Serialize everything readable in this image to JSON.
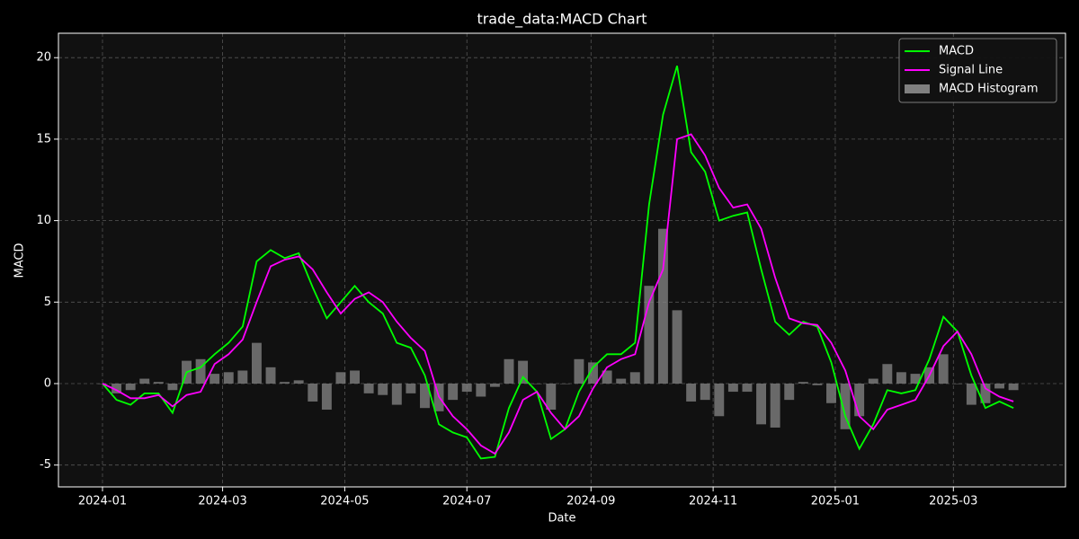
{
  "chart_data": {
    "type": "line",
    "title": "trade_data:MACD Chart",
    "x_label": "Date",
    "y_label": "MACD",
    "x": [
      "2024-01-01",
      "2024-01-08",
      "2024-01-15",
      "2024-01-22",
      "2024-01-29",
      "2024-02-05",
      "2024-02-12",
      "2024-02-19",
      "2024-02-26",
      "2024-03-04",
      "2024-03-11",
      "2024-03-18",
      "2024-03-25",
      "2024-04-01",
      "2024-04-08",
      "2024-04-15",
      "2024-04-22",
      "2024-04-29",
      "2024-05-06",
      "2024-05-13",
      "2024-05-20",
      "2024-05-27",
      "2024-06-03",
      "2024-06-10",
      "2024-06-17",
      "2024-06-24",
      "2024-07-01",
      "2024-07-08",
      "2024-07-15",
      "2024-07-22",
      "2024-07-29",
      "2024-08-05",
      "2024-08-12",
      "2024-08-19",
      "2024-08-26",
      "2024-09-02",
      "2024-09-09",
      "2024-09-16",
      "2024-09-23",
      "2024-09-30",
      "2024-10-07",
      "2024-10-14",
      "2024-10-21",
      "2024-10-28",
      "2024-11-04",
      "2024-11-11",
      "2024-11-18",
      "2024-11-25",
      "2024-12-02",
      "2024-12-09",
      "2024-12-16",
      "2024-12-23",
      "2024-12-30",
      "2025-01-06",
      "2025-01-13",
      "2025-01-20",
      "2025-01-27",
      "2025-02-03",
      "2025-02-10",
      "2025-02-17",
      "2025-02-24",
      "2025-03-03",
      "2025-03-10",
      "2025-03-17",
      "2025-03-24",
      "2025-03-31"
    ],
    "series": [
      {
        "name": "MACD Histogram",
        "type": "bar",
        "color": "#808080",
        "values": [
          0,
          -0.6,
          -0.4,
          0.3,
          0.1,
          -0.4,
          1.4,
          1.5,
          0.6,
          0.7,
          0.8,
          2.5,
          1.0,
          0.1,
          0.2,
          -1.1,
          -1.6,
          0.7,
          0.8,
          -0.6,
          -0.7,
          -1.3,
          -0.6,
          -1.5,
          -1.7,
          -1.0,
          -0.5,
          -0.8,
          -0.2,
          1.5,
          1.4,
          0,
          -1.6,
          0,
          1.5,
          1.3,
          0.8,
          0.3,
          0.7,
          6.0,
          9.5,
          4.5,
          -1.1,
          -1.0,
          -2.0,
          -0.5,
          -0.5,
          -2.5,
          -2.7,
          -1.0,
          0.1,
          -0.1,
          -1.2,
          -2.8,
          -2.0,
          0.3,
          1.2,
          0.7,
          0.6,
          1.0,
          1.8,
          0,
          -1.3,
          -1.2,
          -0.3,
          -0.4
        ]
      },
      {
        "name": "MACD",
        "type": "line",
        "color": "#00ff00",
        "values": [
          0,
          -1.0,
          -1.3,
          -0.6,
          -0.6,
          -1.8,
          0.7,
          1.0,
          1.8,
          2.5,
          3.5,
          7.5,
          8.2,
          7.7,
          8.0,
          5.9,
          4.0,
          5.0,
          6.0,
          5.0,
          4.3,
          2.5,
          2.2,
          0.5,
          -2.5,
          -3.0,
          -3.3,
          -4.6,
          -4.5,
          -1.5,
          0.4,
          -0.5,
          -3.4,
          -2.8,
          -0.5,
          1.0,
          1.8,
          1.8,
          2.5,
          11,
          16.5,
          19.5,
          14.2,
          13.0,
          10.0,
          10.3,
          10.5,
          7.0,
          3.8,
          3.0,
          3.8,
          3.5,
          1.3,
          -2.0,
          -4.0,
          -2.5,
          -0.4,
          -0.6,
          -0.4,
          1.5,
          4.1,
          3.2,
          0.5,
          -1.5,
          -1.1,
          -1.5
        ]
      },
      {
        "name": "Signal Line",
        "type": "line",
        "color": "#ff00ff",
        "values": [
          0,
          -0.4,
          -0.9,
          -0.9,
          -0.7,
          -1.4,
          -0.7,
          -0.5,
          1.2,
          1.8,
          2.7,
          5.0,
          7.2,
          7.6,
          7.8,
          7.0,
          5.6,
          4.3,
          5.2,
          5.6,
          5.0,
          3.8,
          2.8,
          2.0,
          -0.8,
          -2.0,
          -2.8,
          -3.8,
          -4.3,
          -3.0,
          -1.0,
          -0.5,
          -1.8,
          -2.8,
          -2.0,
          -0.3,
          1.0,
          1.5,
          1.8,
          5.0,
          7.0,
          15.0,
          15.3,
          14.0,
          12.0,
          10.8,
          11.0,
          9.5,
          6.5,
          4.0,
          3.7,
          3.6,
          2.5,
          0.8,
          -2.0,
          -2.8,
          -1.6,
          -1.3,
          -1.0,
          0.5,
          2.3,
          3.2,
          1.8,
          -0.3,
          -0.8,
          -1.1
        ]
      }
    ],
    "xlim": [
      "2023-12-10",
      "2025-04-26"
    ],
    "xticks": [
      {
        "value": "2024-01-01",
        "label": "2024-01"
      },
      {
        "value": "2024-03-01",
        "label": "2024-03"
      },
      {
        "value": "2024-05-01",
        "label": "2024-05"
      },
      {
        "value": "2024-07-01",
        "label": "2024-07"
      },
      {
        "value": "2024-09-01",
        "label": "2024-09"
      },
      {
        "value": "2024-11-01",
        "label": "2024-11"
      },
      {
        "value": "2025-01-01",
        "label": "2025-01"
      },
      {
        "value": "2025-03-01",
        "label": "2025-03"
      }
    ],
    "ylim": [
      -6.34,
      21.5
    ],
    "yticks": [
      -5,
      0,
      5,
      10,
      15,
      20
    ],
    "grid": true,
    "legend": "upper right"
  }
}
